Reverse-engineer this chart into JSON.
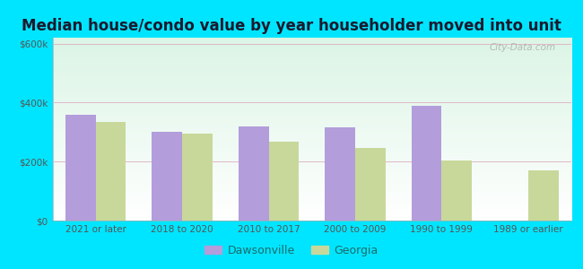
{
  "title": "Median house/condo value by year householder moved into unit",
  "categories": [
    "2021 or later",
    "2018 to 2020",
    "2010 to 2017",
    "2000 to 2009",
    "1990 to 1999",
    "1989 or earlier"
  ],
  "dawsonville": [
    360000,
    300000,
    320000,
    315000,
    390000,
    0
  ],
  "georgia": [
    335000,
    295000,
    268000,
    245000,
    205000,
    170000
  ],
  "dawsonville_color": "#b39ddb",
  "georgia_color": "#c8d89a",
  "background_outer": "#00e5ff",
  "yticks": [
    0,
    200000,
    400000,
    600000
  ],
  "ylim": [
    0,
    620000
  ],
  "ylabel_labels": [
    "$0",
    "$200k",
    "$400k",
    "$600k"
  ],
  "watermark": "City-Data.com",
  "legend_dawsonville": "Dawsonville",
  "legend_georgia": "Georgia",
  "title_fontsize": 12,
  "bar_width": 0.35,
  "grid_color": "#e0b8c8"
}
